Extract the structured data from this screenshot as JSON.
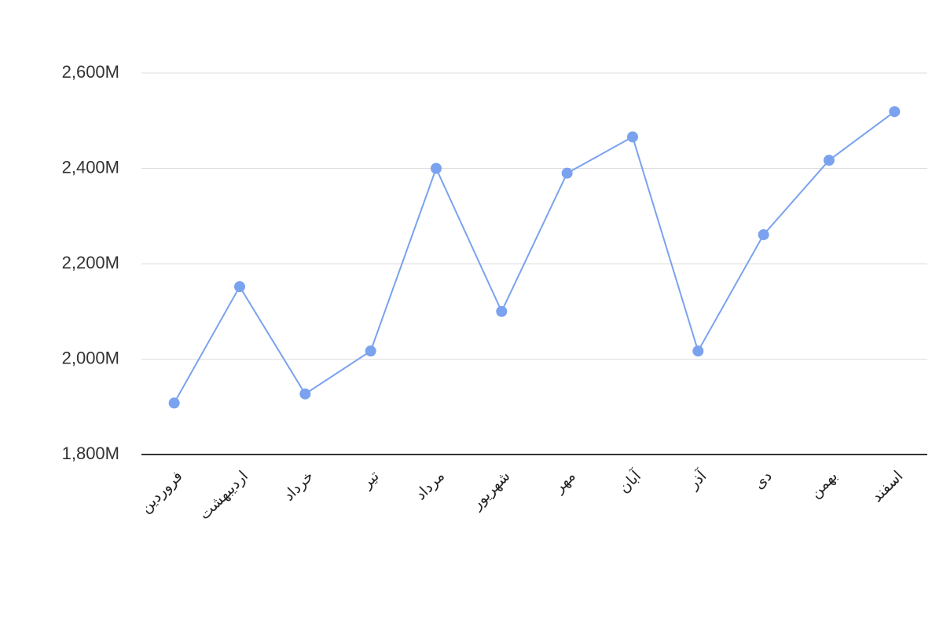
{
  "chart_data": {
    "type": "line",
    "categories": [
      "فروردین",
      "اردیبهشت",
      "خرداد",
      "تیر",
      "مرداد",
      "شهریور",
      "مهر",
      "آبان",
      "آذر",
      "دی",
      "بهمن",
      "اسفند"
    ],
    "values": [
      1908,
      2152,
      1927,
      2017,
      2400,
      2100,
      2390,
      2466,
      2017,
      2261,
      2417,
      2519
    ],
    "color": "#7aa2ee",
    "ylim": [
      1800,
      2600
    ],
    "yticks": [
      {
        "value": 1800,
        "label": "1,800M"
      },
      {
        "value": 2000,
        "label": "2,000M"
      },
      {
        "value": 2200,
        "label": "2,200M"
      },
      {
        "value": 2400,
        "label": "2,400M"
      },
      {
        "value": 2600,
        "label": "2,600M"
      }
    ],
    "grid": true
  }
}
